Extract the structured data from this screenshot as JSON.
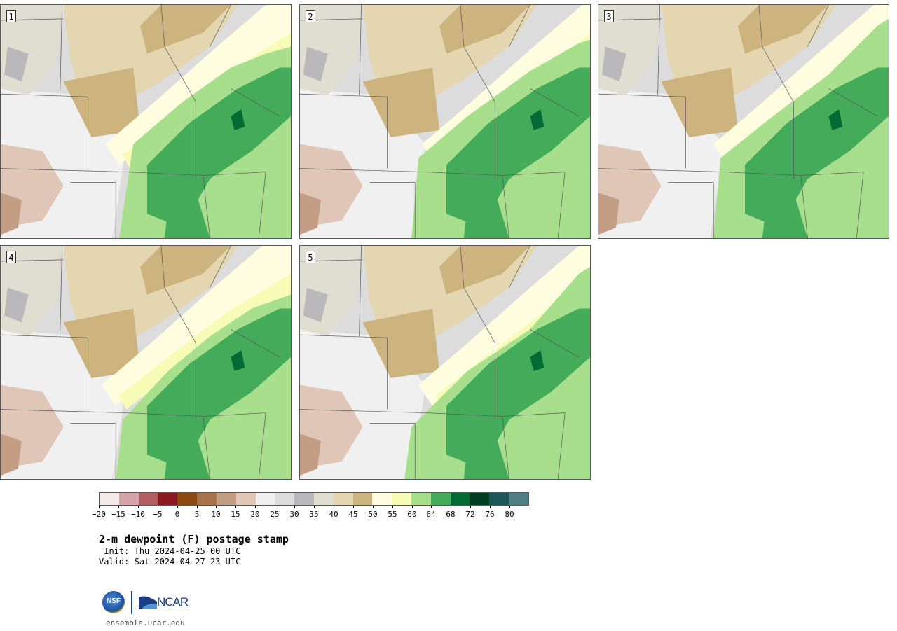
{
  "panels": [
    {
      "label": "1"
    },
    {
      "label": "2"
    },
    {
      "label": "3"
    },
    {
      "label": "4"
    },
    {
      "label": "5"
    }
  ],
  "colorbar": {
    "colors": [
      "#f5e9ea",
      "#d6a3a9",
      "#b25e63",
      "#8a1a1f",
      "#8a4a12",
      "#a9734c",
      "#c49d85",
      "#dfc6b7",
      "#f0f0f0",
      "#dcdcdc",
      "#b9b9bb",
      "#e0ded1",
      "#e3d6b1",
      "#cdb37d",
      "#fffde0",
      "#f6fbb6",
      "#a8df8c",
      "#43ab5a",
      "#026a33",
      "#013d20",
      "#1d5558",
      "#517d84"
    ],
    "tick_labels": [
      "−20",
      "−15",
      "−10",
      "−5",
      "0",
      "5",
      "10",
      "15",
      "20",
      "25",
      "30",
      "35",
      "40",
      "45",
      "50",
      "55",
      "60",
      "64",
      "68",
      "72",
      "76",
      "80"
    ]
  },
  "title": "2-m dewpoint (F) postage stamp",
  "init": " Init: Thu 2024-04-25 00 UTC",
  "valid": "Valid: Sat 2024-04-27 23 UTC",
  "logos": {
    "nsf": "NSF",
    "ncar": "NCAR"
  },
  "footer_url": "ensemble.ucar.edu"
}
